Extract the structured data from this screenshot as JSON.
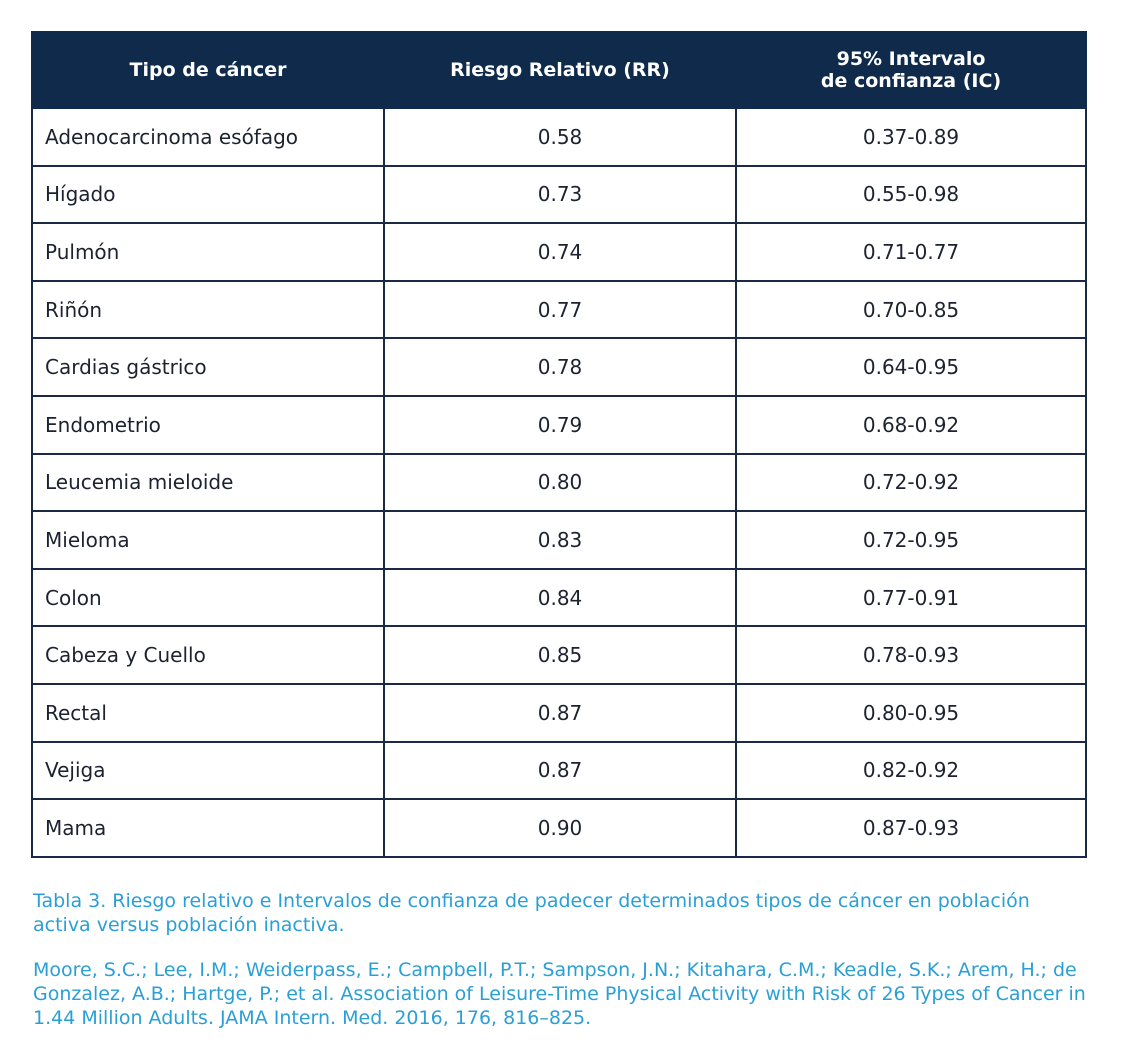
{
  "table": {
    "headers": [
      "Tipo de cáncer",
      "Riesgo Relativo (RR)",
      "95% Intervalo\nde confianza (IC)"
    ],
    "rows": [
      [
        "Adenocarcinoma esófago",
        "0.58",
        "0.37-0.89"
      ],
      [
        "Hígado",
        "0.73",
        "0.55-0.98"
      ],
      [
        "Pulmón",
        "0.74",
        "0.71-0.77"
      ],
      [
        "Riñón",
        "0.77",
        "0.70-0.85"
      ],
      [
        "Cardias gástrico",
        "0.78",
        "0.64-0.95"
      ],
      [
        "Endometrio",
        "0.79",
        "0.68-0.92"
      ],
      [
        "Leucemia mieloide",
        "0.80",
        "0.72-0.92"
      ],
      [
        "Mieloma",
        "0.83",
        "0.72-0.95"
      ],
      [
        "Colon",
        "0.84",
        "0.77-0.91"
      ],
      [
        "Cabeza y Cuello",
        "0.85",
        "0.78-0.93"
      ],
      [
        "Rectal",
        "0.87",
        "0.80-0.95"
      ],
      [
        "Vejiga",
        "0.87",
        "0.82-0.92"
      ],
      [
        "Mama",
        "0.90",
        "0.87-0.93"
      ]
    ]
  },
  "caption": "Tabla 3. Riesgo relativo e Intervalos de confianza de padecer determinados tipos de cáncer en población activa versus población inactiva.",
  "reference": "Moore, S.C.; Lee, I.M.; Weiderpass, E.; Campbell, P.T.; Sampson, J.N.; Kitahara, C.M.; Keadle, S.K.; Arem, H.; de Gonzalez, A.B.; Hartge, P.; et al. Association of Leisure-Time Physical Activity with Risk of 26 Types of Cancer in 1.44 Million Adults. JAMA Intern. Med. 2016, 176, 816–825.",
  "colors": {
    "header_bg": "#0f2a4a",
    "header_text": "#ffffff",
    "border": "#1a2a44",
    "caption_text": "#2a9fd6"
  }
}
